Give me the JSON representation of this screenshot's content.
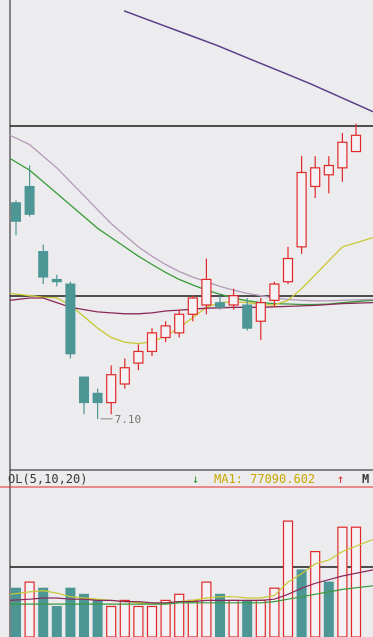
{
  "chart_data": {
    "type": "candlestick",
    "ylim_price": [
      6.0,
      13.4
    ],
    "low_marker_label": "7.10",
    "candles": [
      {
        "o": 11.35,
        "c": 11.75,
        "h": 11.8,
        "l": 11.05,
        "dir": "down"
      },
      {
        "o": 11.5,
        "c": 12.1,
        "h": 12.55,
        "l": 11.45,
        "dir": "down"
      },
      {
        "o": 10.7,
        "c": 10.15,
        "h": 10.85,
        "l": 10.0,
        "dir": "down"
      },
      {
        "o": 10.1,
        "c": 10.05,
        "h": 10.2,
        "l": 9.95,
        "dir": "down"
      },
      {
        "o": 10.0,
        "c": 8.5,
        "h": 10.05,
        "l": 8.4,
        "dir": "down"
      },
      {
        "o": 8.0,
        "c": 7.45,
        "h": 8.0,
        "l": 7.2,
        "dir": "down"
      },
      {
        "o": 7.45,
        "c": 7.65,
        "h": 7.75,
        "l": 7.1,
        "dir": "down"
      },
      {
        "o": 7.45,
        "c": 8.05,
        "h": 8.25,
        "l": 7.2,
        "dir": "up"
      },
      {
        "o": 7.85,
        "c": 8.2,
        "h": 8.4,
        "l": 7.75,
        "dir": "up"
      },
      {
        "o": 8.3,
        "c": 8.55,
        "h": 8.7,
        "l": 8.15,
        "dir": "up"
      },
      {
        "o": 8.55,
        "c": 8.95,
        "h": 9.05,
        "l": 8.45,
        "dir": "up"
      },
      {
        "o": 8.85,
        "c": 9.1,
        "h": 9.2,
        "l": 8.75,
        "dir": "up"
      },
      {
        "o": 8.95,
        "c": 9.35,
        "h": 9.45,
        "l": 8.85,
        "dir": "up"
      },
      {
        "o": 9.35,
        "c": 9.7,
        "h": 9.75,
        "l": 9.2,
        "dir": "up"
      },
      {
        "o": 9.55,
        "c": 10.1,
        "h": 10.55,
        "l": 9.35,
        "dir": "up"
      },
      {
        "o": 9.6,
        "c": 9.5,
        "h": 9.75,
        "l": 9.45,
        "dir": "down"
      },
      {
        "o": 9.55,
        "c": 9.75,
        "h": 9.9,
        "l": 9.45,
        "dir": "up"
      },
      {
        "o": 9.55,
        "c": 9.05,
        "h": 9.7,
        "l": 9.0,
        "dir": "down"
      },
      {
        "o": 9.2,
        "c": 9.6,
        "h": 9.7,
        "l": 8.8,
        "dir": "up"
      },
      {
        "o": 9.65,
        "c": 10.0,
        "h": 10.05,
        "l": 9.5,
        "dir": "up"
      },
      {
        "o": 10.05,
        "c": 10.55,
        "h": 10.8,
        "l": 10.0,
        "dir": "up"
      },
      {
        "o": 10.8,
        "c": 12.4,
        "h": 12.75,
        "l": 10.65,
        "dir": "up"
      },
      {
        "o": 12.1,
        "c": 12.5,
        "h": 12.75,
        "l": 11.85,
        "dir": "up"
      },
      {
        "o": 12.35,
        "c": 12.55,
        "h": 12.75,
        "l": 11.95,
        "dir": "up"
      },
      {
        "o": 12.5,
        "c": 13.05,
        "h": 13.25,
        "l": 12.2,
        "dir": "up"
      },
      {
        "o": 12.85,
        "c": 13.2,
        "h": 13.45,
        "l": 12.85,
        "dir": "up"
      }
    ],
    "ma_lines": [
      {
        "color": "#3a9a3a",
        "values": [
          12.7,
          12.45,
          12.2,
          11.95,
          11.7,
          11.45,
          11.2,
          11.0,
          10.8,
          10.6,
          10.42,
          10.25,
          10.1,
          9.98,
          9.87,
          9.78,
          9.7,
          9.64,
          9.6,
          9.58,
          9.57,
          9.56,
          9.56,
          9.57,
          9.6,
          9.65
        ]
      },
      {
        "color": "#b49ab8",
        "values": [
          13.2,
          13.0,
          12.75,
          12.5,
          12.2,
          11.9,
          11.6,
          11.3,
          11.05,
          10.8,
          10.6,
          10.42,
          10.27,
          10.15,
          10.05,
          9.95,
          9.87,
          9.8,
          9.75,
          9.7,
          9.67,
          9.65,
          9.64,
          9.64,
          9.65,
          9.67
        ]
      },
      {
        "color": "#c8c832",
        "values": [
          9.8,
          9.75,
          9.72,
          9.7,
          9.55,
          9.3,
          9.05,
          8.85,
          8.75,
          8.72,
          8.76,
          8.88,
          9.06,
          9.28,
          9.5,
          9.6,
          9.62,
          9.6,
          9.56,
          9.55,
          9.65,
          9.9,
          10.2,
          10.5,
          10.8,
          11.0
        ]
      },
      {
        "color": "#8a2a5a",
        "values": [
          9.65,
          9.7,
          9.7,
          9.6,
          9.5,
          9.45,
          9.4,
          9.38,
          9.36,
          9.36,
          9.38,
          9.42,
          9.44,
          9.46,
          9.48,
          9.49,
          9.5,
          9.5,
          9.5,
          9.51,
          9.52,
          9.53,
          9.54,
          9.56,
          9.58,
          9.6
        ]
      }
    ],
    "upper_line": {
      "color": "#5b3f8a",
      "values": [
        0.95,
        0.85,
        0.75,
        0.65,
        0.54,
        0.43,
        0.32,
        0.2,
        0.08
      ]
    },
    "volume": {
      "label": "OL(5,10,20)",
      "ma_label": "MA1: 77090.602",
      "ma_arrow": "↑",
      "extra_label": "M",
      "left_arrow": "↓",
      "bars": [
        {
          "v": 0.4,
          "dir": "down"
        },
        {
          "v": 0.45,
          "dir": "up"
        },
        {
          "v": 0.4,
          "dir": "down"
        },
        {
          "v": 0.25,
          "dir": "down"
        },
        {
          "v": 0.4,
          "dir": "down"
        },
        {
          "v": 0.35,
          "dir": "down"
        },
        {
          "v": 0.3,
          "dir": "down"
        },
        {
          "v": 0.25,
          "dir": "up"
        },
        {
          "v": 0.3,
          "dir": "up"
        },
        {
          "v": 0.25,
          "dir": "up"
        },
        {
          "v": 0.25,
          "dir": "up"
        },
        {
          "v": 0.3,
          "dir": "up"
        },
        {
          "v": 0.35,
          "dir": "up"
        },
        {
          "v": 0.3,
          "dir": "up"
        },
        {
          "v": 0.45,
          "dir": "up"
        },
        {
          "v": 0.35,
          "dir": "down"
        },
        {
          "v": 0.3,
          "dir": "up"
        },
        {
          "v": 0.3,
          "dir": "down"
        },
        {
          "v": 0.3,
          "dir": "up"
        },
        {
          "v": 0.4,
          "dir": "up"
        },
        {
          "v": 0.95,
          "dir": "up"
        },
        {
          "v": 0.55,
          "dir": "down"
        },
        {
          "v": 0.7,
          "dir": "up"
        },
        {
          "v": 0.45,
          "dir": "down"
        },
        {
          "v": 0.9,
          "dir": "up"
        },
        {
          "v": 0.9,
          "dir": "up"
        }
      ],
      "ma_lines": [
        {
          "color": "#c8c832",
          "values": [
            0.35,
            0.37,
            0.38,
            0.36,
            0.33,
            0.32,
            0.31,
            0.3,
            0.29,
            0.28,
            0.27,
            0.28,
            0.29,
            0.3,
            0.32,
            0.33,
            0.33,
            0.32,
            0.32,
            0.34,
            0.45,
            0.52,
            0.6,
            0.63,
            0.7,
            0.8
          ]
        },
        {
          "color": "#8a2a5a",
          "values": [
            0.3,
            0.31,
            0.32,
            0.32,
            0.31,
            0.31,
            0.3,
            0.3,
            0.29,
            0.29,
            0.28,
            0.28,
            0.29,
            0.29,
            0.3,
            0.3,
            0.3,
            0.3,
            0.3,
            0.31,
            0.35,
            0.4,
            0.44,
            0.47,
            0.5,
            0.55
          ]
        },
        {
          "color": "#3a9a3a",
          "values": [
            0.27,
            0.27,
            0.27,
            0.27,
            0.27,
            0.27,
            0.27,
            0.27,
            0.27,
            0.27,
            0.27,
            0.27,
            0.28,
            0.28,
            0.28,
            0.28,
            0.28,
            0.28,
            0.28,
            0.29,
            0.31,
            0.33,
            0.35,
            0.37,
            0.39,
            0.42
          ]
        }
      ]
    }
  },
  "colors": {
    "up": "#e02828",
    "down": "#4d9696",
    "grid": "#1a1a1a",
    "label_text": "#3a3a3a",
    "ma_label": "#c8a800",
    "arrow_up": "#e02828",
    "arrow_down": "#2a9a2a"
  }
}
